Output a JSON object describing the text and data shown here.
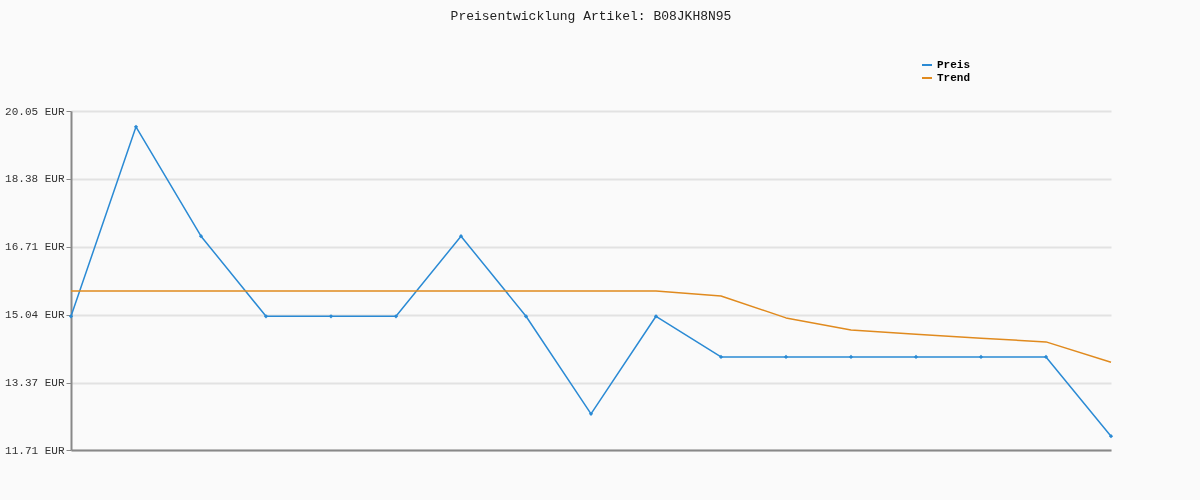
{
  "chart_data": {
    "type": "line",
    "title": "Preisentwicklung Artikel: B08JKH8N95",
    "categories": [
      null,
      null,
      null,
      null,
      null,
      null,
      null,
      null,
      null,
      null,
      null,
      null,
      null,
      null,
      null,
      null,
      null
    ],
    "series": [
      {
        "name": "Preis",
        "color": "#2a8ad4",
        "marker": "diamond",
        "values": [
          15.0,
          19.66,
          16.97,
          15.0,
          15.0,
          15.0,
          16.97,
          15.0,
          12.6,
          15.0,
          14.0,
          14.0,
          14.0,
          14.0,
          14.0,
          14.0,
          12.05
        ]
      },
      {
        "name": "Trend",
        "color": "#e08a1e",
        "marker": "none",
        "values": [
          15.62,
          15.62,
          15.62,
          15.62,
          15.62,
          15.62,
          15.62,
          15.62,
          15.62,
          15.62,
          15.5,
          14.96,
          14.66,
          14.56,
          14.46,
          14.37,
          13.87
        ]
      }
    ],
    "ylim": [
      11.71,
      20.05
    ],
    "yticks": [
      {
        "value": 11.71,
        "label": "11.71 EUR"
      },
      {
        "value": 13.37,
        "label": "13.37 EUR"
      },
      {
        "value": 15.04,
        "label": "15.04 EUR"
      },
      {
        "value": 16.71,
        "label": "16.71 EUR"
      },
      {
        "value": 18.38,
        "label": "18.38 EUR"
      },
      {
        "value": 20.05,
        "label": "20.05 EUR"
      }
    ],
    "grid": "y",
    "legend": "top right",
    "tick_labels": "y"
  }
}
